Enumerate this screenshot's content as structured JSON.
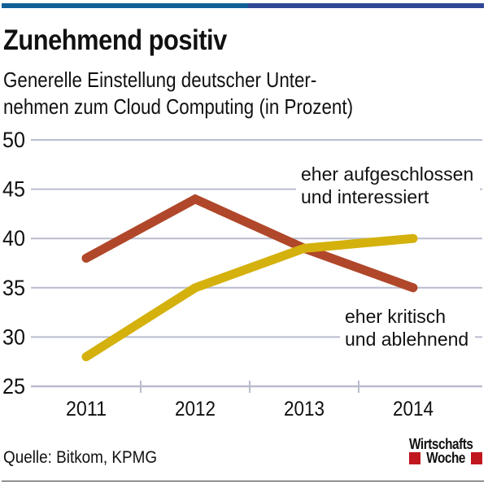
{
  "header": {
    "title": "Zunehmend positiv",
    "subtitle_lines": [
      "Generelle Einstellung deutscher Unter-",
      "nehmen zum Cloud Computing (in Prozent)"
    ]
  },
  "colors": {
    "topbar_left": "#0e5f96",
    "topbar_right": "#2f4796",
    "grid": "#b9bccd",
    "series_critical": "#b0472a",
    "series_open": "#d4b10c",
    "logo_red": "#c0171f"
  },
  "chart_data": {
    "type": "line",
    "title": "Zunehmend positiv",
    "subtitle": "Generelle Einstellung deutscher Unternehmen zum Cloud Computing (in Prozent)",
    "xlabel": "",
    "ylabel": "",
    "categories": [
      "2011",
      "2012",
      "2013",
      "2014"
    ],
    "ylim": [
      25,
      50
    ],
    "yticks": [
      25,
      30,
      35,
      40,
      45,
      50
    ],
    "grid": true,
    "series": [
      {
        "name": "eher kritisch und ablehnend",
        "label_lines": [
          "eher kritisch",
          "und ablehnend"
        ],
        "color": "#b0472a",
        "values": [
          38,
          44,
          39,
          35
        ]
      },
      {
        "name": "eher aufgeschlossen und interessiert",
        "label_lines": [
          "eher aufgeschlossen",
          "und interessiert"
        ],
        "color": "#d4b10c",
        "values": [
          28,
          35,
          39,
          40
        ]
      }
    ]
  },
  "footer": {
    "source": "Quelle: Bitkom, KPMG",
    "logo_line1": "Wirtschafts",
    "logo_line2": "Woche"
  }
}
